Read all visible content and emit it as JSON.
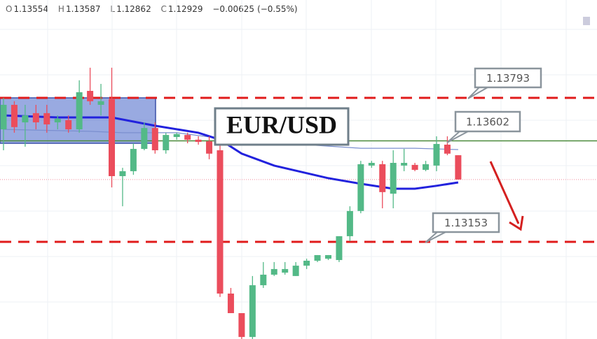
{
  "chart_data": {
    "type": "candlestick",
    "title": "EUR/USD",
    "header": {
      "open_label": "O",
      "open": "1.13554",
      "high_label": "H",
      "high": "1.13587",
      "low_label": "L",
      "low": "1.12862",
      "close_label": "C",
      "close": "1.12929",
      "change": "−0.00625",
      "change_pct": "(−0.55%)"
    },
    "ylim": [
      1.12721,
      1.14228
    ],
    "up_color": "#53b987",
    "down_color": "#eb4d5c",
    "open": [
      1.13653,
      1.13762,
      1.13684,
      1.13725,
      1.13725,
      1.13684,
      1.13694,
      1.13653,
      1.13824,
      1.13762,
      1.13787,
      1.13445,
      1.13467,
      1.13566,
      1.13659,
      1.1356,
      1.13619,
      1.13628,
      1.13607,
      1.136,
      1.1356,
      1.12923,
      1.12836,
      1.1273,
      1.1296,
      1.13007,
      1.13016,
      1.13001,
      1.13047,
      1.13069,
      1.13078,
      1.13072,
      1.13178,
      1.1329,
      1.13492,
      1.13498,
      1.13367,
      1.13492,
      1.13495,
      1.13473,
      1.13492,
      1.13585,
      1.13538
    ],
    "high": [
      1.13793,
      1.13778,
      1.13762,
      1.13762,
      1.13762,
      1.13715,
      1.13715,
      1.13871,
      1.13927,
      1.13855,
      1.13927,
      1.13482,
      1.13591,
      1.13684,
      1.13684,
      1.13638,
      1.13638,
      1.13638,
      1.13622,
      1.13622,
      1.13591,
      1.12948,
      1.12836,
      1.13001,
      1.13063,
      1.13063,
      1.13063,
      1.13063,
      1.13078,
      1.13094,
      1.13094,
      1.13178,
      1.13311,
      1.13513,
      1.13513,
      1.13513,
      1.1356,
      1.13566,
      1.13504,
      1.13513,
      1.13622,
      1.13622,
      1.13538
    ],
    "low": [
      1.1356,
      1.13638,
      1.13576,
      1.13653,
      1.13638,
      1.13653,
      1.13638,
      1.13638,
      1.13762,
      1.13715,
      1.13395,
      1.13311,
      1.13451,
      1.1356,
      1.13545,
      1.13545,
      1.13607,
      1.13591,
      1.13585,
      1.1352,
      1.12908,
      1.12836,
      1.12721,
      1.12721,
      1.12948,
      1.13001,
      1.13007,
      1.13001,
      1.13032,
      1.13063,
      1.13072,
      1.13063,
      1.13156,
      1.1328,
      1.13482,
      1.13302,
      1.13302,
      1.13467,
      1.13467,
      1.13467,
      1.13467,
      1.13538,
      1.1343
    ],
    "close": [
      1.13762,
      1.13663,
      1.13715,
      1.13684,
      1.13675,
      1.137,
      1.13653,
      1.13818,
      1.13778,
      1.13778,
      1.13445,
      1.13467,
      1.13566,
      1.13659,
      1.1356,
      1.13628,
      1.13632,
      1.13607,
      1.13597,
      1.13545,
      1.12923,
      1.12836,
      1.1273,
      1.1296,
      1.13007,
      1.13032,
      1.13032,
      1.13047,
      1.13069,
      1.13094,
      1.13094,
      1.13178,
      1.1329,
      1.13498,
      1.13504,
      1.13374,
      1.13504,
      1.13504,
      1.13473,
      1.13498,
      1.13588,
      1.13545,
      1.1343
    ],
    "lines": [
      {
        "color": "#7b8fcf",
        "width": 1.2,
        "x": [
          0,
          8,
          11,
          16,
          20,
          26,
          33,
          38,
          42
        ],
        "values": [
          1.13653,
          1.13644,
          1.13638,
          1.13638,
          1.13613,
          1.13591,
          1.13569,
          1.13569,
          1.13563
        ]
      },
      {
        "color": "#2222dd",
        "width": 3,
        "x": [
          0,
          5,
          10,
          14,
          18,
          20,
          22,
          25,
          30,
          33,
          36,
          38,
          40,
          42
        ],
        "values": [
          1.13715,
          1.13706,
          1.13706,
          1.13669,
          1.13638,
          1.13607,
          1.13545,
          1.13492,
          1.13436,
          1.13411,
          1.13389,
          1.13389,
          1.13402,
          1.13417
        ]
      }
    ],
    "levels": [
      {
        "value": 1.13793,
        "color": "#e01b1b",
        "style": "dashed"
      },
      {
        "value": 1.13602,
        "color": "#4a8a3a",
        "style": "solid"
      },
      {
        "value": 1.13153,
        "color": "#e01b1b",
        "style": "dashed"
      }
    ]
  }
}
